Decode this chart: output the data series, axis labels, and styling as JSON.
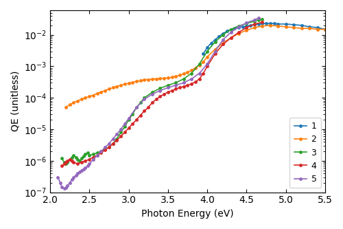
{
  "xlabel": "Photon Energy (eV)",
  "ylabel": "QE (unitless)",
  "xlim": [
    2.0,
    5.5
  ],
  "ylim": [
    1e-07,
    0.06
  ],
  "legend_labels": [
    "1",
    "2",
    "3",
    "4",
    "5"
  ],
  "colors": [
    "#1f77b4",
    "#ff7f0e",
    "#2ca02c",
    "#d62728",
    "#9467bd"
  ],
  "series": {
    "1": {
      "x": [
        3.95,
        4.0,
        4.05,
        4.1,
        4.15,
        4.2,
        4.25,
        4.3,
        4.35,
        4.4,
        4.45,
        4.5,
        4.55,
        4.6,
        4.65,
        4.7,
        4.75,
        4.8,
        4.85,
        4.9,
        5.0,
        5.1,
        5.2,
        5.3,
        5.4,
        5.5
      ],
      "y": [
        0.0025,
        0.004,
        0.0055,
        0.007,
        0.009,
        0.011,
        0.013,
        0.015,
        0.016,
        0.017,
        0.018,
        0.019,
        0.02,
        0.021,
        0.022,
        0.023,
        0.023,
        0.023,
        0.023,
        0.022,
        0.022,
        0.021,
        0.02,
        0.018,
        0.017,
        0.015
      ]
    },
    "2": {
      "x": [
        2.2,
        2.25,
        2.3,
        2.35,
        2.4,
        2.45,
        2.5,
        2.55,
        2.6,
        2.65,
        2.7,
        2.75,
        2.8,
        2.85,
        2.9,
        2.95,
        3.0,
        3.05,
        3.1,
        3.15,
        3.2,
        3.25,
        3.3,
        3.35,
        3.4,
        3.45,
        3.5,
        3.55,
        3.6,
        3.65,
        3.7,
        3.75,
        3.8,
        3.85,
        3.9,
        3.95,
        4.0,
        4.1,
        4.2,
        4.3,
        4.4,
        4.5,
        4.6,
        4.7,
        4.8,
        4.9,
        5.0,
        5.1,
        5.2,
        5.3,
        5.4,
        5.5
      ],
      "y": [
        5e-05,
        6e-05,
        7e-05,
        8e-05,
        9e-05,
        0.0001,
        0.00011,
        0.00012,
        0.00014,
        0.00015,
        0.00017,
        0.00019,
        0.00021,
        0.00023,
        0.00025,
        0.00027,
        0.00029,
        0.00031,
        0.00033,
        0.00035,
        0.00037,
        0.00038,
        0.00039,
        0.0004,
        0.00041,
        0.00042,
        0.00043,
        0.00045,
        0.00048,
        0.00052,
        0.00058,
        0.00065,
        0.00075,
        0.0009,
        0.0011,
        0.0014,
        0.002,
        0.0035,
        0.0055,
        0.008,
        0.011,
        0.014,
        0.017,
        0.019,
        0.02,
        0.019,
        0.018,
        0.017,
        0.016,
        0.016,
        0.015,
        0.015
      ]
    },
    "3": {
      "x": [
        2.15,
        2.18,
        2.2,
        2.22,
        2.25,
        2.28,
        2.3,
        2.33,
        2.35,
        2.38,
        2.4,
        2.43,
        2.45,
        2.48,
        2.5,
        2.55,
        2.6,
        2.65,
        2.7,
        2.75,
        2.8,
        2.85,
        2.9,
        2.95,
        3.0,
        3.05,
        3.1,
        3.15,
        3.2,
        3.3,
        3.4,
        3.5,
        3.6,
        3.7,
        3.8,
        3.9,
        4.0,
        4.1,
        4.2,
        4.3,
        4.4,
        4.5,
        4.6,
        4.65,
        4.7
      ],
      "y": [
        1.2e-06,
        9e-07,
        8e-07,
        9e-07,
        1.1e-06,
        1.3e-06,
        1.5e-06,
        1.3e-06,
        1.1e-06,
        1e-06,
        1.2e-06,
        1.4e-06,
        1.6e-06,
        1.8e-06,
        1.5e-06,
        1.6e-06,
        1.8e-06,
        2e-06,
        2.3e-06,
        2.7e-06,
        3.5e-06,
        5e-06,
        8e-06,
        1.2e-05,
        2e-05,
        3e-05,
        5e-05,
        7e-05,
        0.0001,
        0.00015,
        0.0002,
        0.00025,
        0.0003,
        0.0004,
        0.0006,
        0.0012,
        0.003,
        0.006,
        0.01,
        0.015,
        0.019,
        0.023,
        0.027,
        0.03,
        0.032
      ]
    },
    "4": {
      "x": [
        2.15,
        2.18,
        2.2,
        2.22,
        2.25,
        2.28,
        2.3,
        2.35,
        2.4,
        2.45,
        2.5,
        2.55,
        2.6,
        2.65,
        2.7,
        2.75,
        2.8,
        2.85,
        2.9,
        2.95,
        3.0,
        3.05,
        3.1,
        3.15,
        3.2,
        3.25,
        3.3,
        3.35,
        3.4,
        3.45,
        3.5,
        3.55,
        3.6,
        3.65,
        3.7,
        3.75,
        3.8,
        3.85,
        3.9,
        3.95,
        4.0,
        4.1,
        4.2,
        4.3,
        4.4,
        4.5,
        4.6,
        4.7
      ],
      "y": [
        7e-07,
        8e-07,
        9e-07,
        1e-06,
        1.1e-06,
        1e-06,
        9e-07,
        8e-07,
        9e-07,
        1e-06,
        1.1e-06,
        1.3e-06,
        1.5e-06,
        1.8e-06,
        2.2e-06,
        2.7e-06,
        3.5e-06,
        4.5e-06,
        6e-06,
        8e-06,
        1.1e-05,
        1.5e-05,
        2e-05,
        2.8e-05,
        3.8e-05,
        5e-05,
        7e-05,
        9e-05,
        0.00011,
        0.00013,
        0.00015,
        0.00017,
        0.00019,
        0.00021,
        0.00023,
        0.00025,
        0.00028,
        0.00032,
        0.0004,
        0.0006,
        0.001,
        0.0025,
        0.005,
        0.008,
        0.012,
        0.017,
        0.022,
        0.025
      ]
    },
    "5": {
      "x": [
        2.1,
        2.13,
        2.15,
        2.18,
        2.2,
        2.22,
        2.25,
        2.28,
        2.3,
        2.33,
        2.35,
        2.38,
        2.4,
        2.43,
        2.45,
        2.48,
        2.5,
        2.55,
        2.6,
        2.65,
        2.7,
        2.75,
        2.8,
        2.85,
        2.9,
        2.95,
        3.0,
        3.1,
        3.2,
        3.3,
        3.4,
        3.5,
        3.6,
        3.7,
        3.8,
        3.9,
        4.0,
        4.1,
        4.2,
        4.3,
        4.4,
        4.5,
        4.6,
        4.65
      ],
      "y": [
        3e-07,
        2e-07,
        1.5e-07,
        1.3e-07,
        1.4e-07,
        1.6e-07,
        2e-07,
        2.5e-07,
        3e-07,
        3.5e-07,
        4e-07,
        4.5e-07,
        5e-07,
        5.5e-07,
        6e-07,
        7e-07,
        8e-07,
        1.1e-06,
        1.5e-06,
        2e-06,
        2.7e-06,
        3.5e-06,
        5e-06,
        7e-06,
        1e-05,
        1.5e-05,
        2.2e-05,
        5e-05,
        9e-05,
        0.00013,
        0.00017,
        0.00021,
        0.00025,
        0.0003,
        0.0004,
        0.0006,
        0.0012,
        0.003,
        0.007,
        0.012,
        0.018,
        0.024,
        0.03,
        0.034
      ]
    }
  },
  "marker": "o",
  "markersize": 2.5,
  "linewidth": 1.2
}
